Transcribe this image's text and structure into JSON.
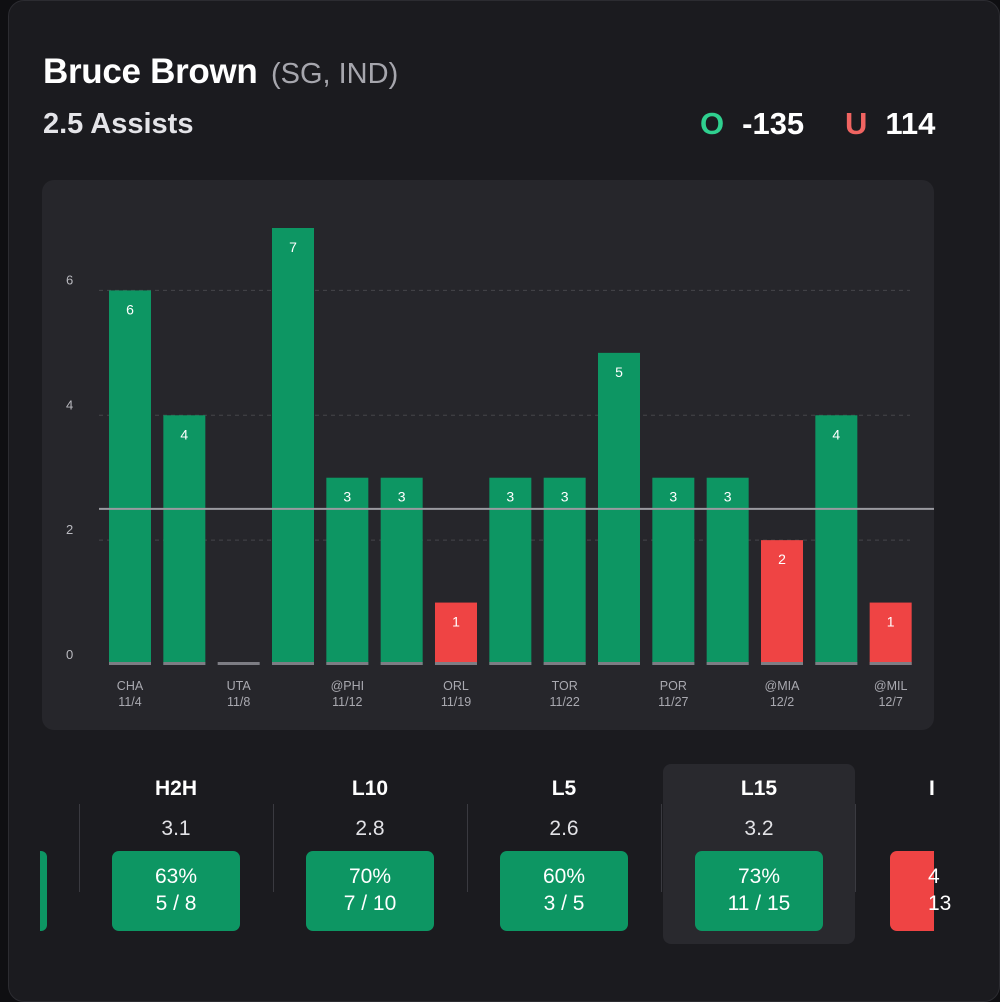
{
  "player": {
    "name": "Bruce Brown",
    "meta": "(SG, IND)"
  },
  "prop": {
    "line_label": "2.5 Assists"
  },
  "odds": {
    "over_label": "O",
    "over_value": "-135",
    "under_label": "U",
    "under_value": "114"
  },
  "colors": {
    "over": "#0d9663",
    "under": "#ef4444",
    "line": "#9a9aa0"
  },
  "chart_data": {
    "type": "bar",
    "threshold": 2.5,
    "ylim": [
      0,
      7
    ],
    "yticks": [
      0,
      2,
      4,
      6
    ],
    "grid": true,
    "categories": [
      "CHA 11/4",
      "",
      "UTA 11/8",
      "",
      "@PHI 11/12",
      "",
      "ORL 11/19",
      "",
      "TOR 11/22",
      "",
      "POR 11/27",
      "",
      "@MIA 12/2",
      "",
      "@MIL 12/7"
    ],
    "category_labels": [
      {
        "top": "CHA",
        "bottom": "11/4"
      },
      {
        "top": "",
        "bottom": ""
      },
      {
        "top": "UTA",
        "bottom": "11/8"
      },
      {
        "top": "",
        "bottom": ""
      },
      {
        "top": "@PHI",
        "bottom": "11/12"
      },
      {
        "top": "",
        "bottom": ""
      },
      {
        "top": "ORL",
        "bottom": "11/19"
      },
      {
        "top": "",
        "bottom": ""
      },
      {
        "top": "TOR",
        "bottom": "11/22"
      },
      {
        "top": "",
        "bottom": ""
      },
      {
        "top": "POR",
        "bottom": "11/27"
      },
      {
        "top": "",
        "bottom": ""
      },
      {
        "top": "@MIA",
        "bottom": "12/2"
      },
      {
        "top": "",
        "bottom": ""
      },
      {
        "top": "@MIL",
        "bottom": "12/7"
      }
    ],
    "values": [
      6,
      4,
      0,
      7,
      3,
      3,
      1,
      3,
      3,
      5,
      3,
      3,
      2,
      4,
      1
    ]
  },
  "splits": [
    {
      "label": "H2H",
      "avg": "3.1",
      "pct": "63%",
      "record": "5 / 8",
      "status": "over"
    },
    {
      "label": "L10",
      "avg": "2.8",
      "pct": "70%",
      "record": "7 / 10",
      "status": "over"
    },
    {
      "label": "L5",
      "avg": "2.6",
      "pct": "60%",
      "record": "3 / 5",
      "status": "over"
    },
    {
      "label": "L15",
      "avg": "3.2",
      "pct": "73%",
      "record": "11 / 15",
      "status": "over",
      "selected": true
    }
  ],
  "partial_next": {
    "label": "I",
    "pct": "4",
    "record": "13"
  }
}
